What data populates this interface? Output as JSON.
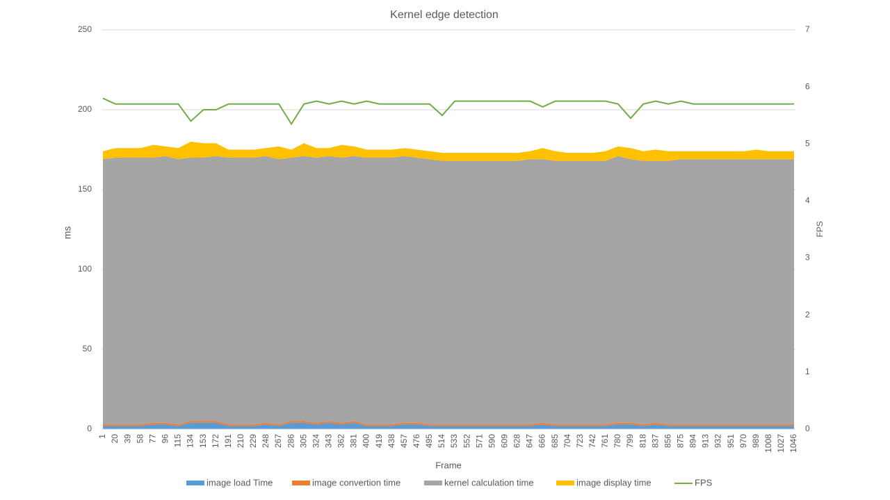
{
  "chart_data": {
    "type": "stacked-area-line",
    "title": "Kernel edge detection",
    "x_label": "Frame",
    "y_label": "ms",
    "y2_label": "FPS",
    "categories": [
      1,
      20,
      39,
      58,
      77,
      96,
      115,
      134,
      153,
      172,
      191,
      210,
      229,
      248,
      267,
      286,
      305,
      324,
      343,
      362,
      381,
      400,
      419,
      438,
      457,
      476,
      495,
      514,
      533,
      552,
      571,
      590,
      609,
      628,
      647,
      666,
      685,
      704,
      723,
      742,
      761,
      780,
      799,
      818,
      837,
      856,
      875,
      894,
      913,
      932,
      951,
      970,
      989,
      1008,
      1027,
      1046
    ],
    "ylim": [
      0,
      250
    ],
    "yticks": [
      0,
      50,
      100,
      150,
      200,
      250
    ],
    "y2lim": [
      0,
      7
    ],
    "y2ticks": [
      0,
      1,
      2,
      3,
      4,
      5,
      6,
      7
    ],
    "grid": true,
    "legend": "bottom",
    "series": [
      {
        "name": "image load Time",
        "color": "#5b9bd5",
        "kind": "area",
        "values": [
          2,
          2,
          2,
          2,
          3,
          3,
          2,
          4,
          4,
          4,
          2,
          2,
          2,
          3,
          2,
          4,
          4,
          3,
          4,
          3,
          4,
          2,
          2,
          2,
          3,
          3,
          2,
          2,
          2,
          2,
          2,
          2,
          2,
          2,
          2,
          3,
          2,
          2,
          2,
          2,
          2,
          3,
          3,
          2,
          3,
          2,
          2,
          2,
          2,
          2,
          2,
          2,
          2,
          2,
          2,
          2
        ]
      },
      {
        "name": "image convertion time",
        "color": "#ed7d31",
        "kind": "area",
        "values": [
          1,
          1,
          1,
          1,
          1,
          1,
          1,
          1,
          1,
          1,
          1,
          1,
          1,
          1,
          1,
          1,
          1,
          1,
          1,
          1,
          1,
          1,
          1,
          1,
          1,
          1,
          1,
          1,
          1,
          1,
          1,
          1,
          1,
          1,
          1,
          1,
          1,
          1,
          1,
          1,
          1,
          1,
          1,
          1,
          1,
          1,
          1,
          1,
          1,
          1,
          1,
          1,
          1,
          1,
          1,
          1
        ]
      },
      {
        "name": "kernel calculation time",
        "color": "#a5a5a5",
        "kind": "area",
        "values": [
          166,
          167,
          167,
          167,
          166,
          167,
          166,
          165,
          165,
          166,
          167,
          167,
          167,
          167,
          166,
          165,
          166,
          166,
          166,
          166,
          166,
          167,
          167,
          167,
          167,
          166,
          166,
          165,
          165,
          165,
          165,
          165,
          165,
          165,
          166,
          165,
          165,
          165,
          165,
          165,
          165,
          167,
          165,
          165,
          164,
          165,
          166,
          166,
          166,
          166,
          166,
          166,
          166,
          166,
          166,
          166
        ]
      },
      {
        "name": "image display time",
        "color": "#ffc000",
        "kind": "area",
        "values": [
          5,
          6,
          6,
          6,
          8,
          6,
          7,
          10,
          9,
          8,
          5,
          5,
          5,
          5,
          8,
          5,
          8,
          6,
          5,
          8,
          6,
          5,
          5,
          5,
          5,
          5,
          5,
          5,
          5,
          5,
          5,
          5,
          5,
          5,
          5,
          7,
          6,
          5,
          5,
          5,
          6,
          6,
          7,
          6,
          7,
          6,
          5,
          5,
          5,
          5,
          5,
          5,
          6,
          5,
          5,
          5
        ]
      },
      {
        "name": "FPS",
        "color": "#70ad47",
        "kind": "line",
        "axis": "y2",
        "values": [
          5.8,
          5.7,
          5.7,
          5.7,
          5.7,
          5.7,
          5.7,
          5.4,
          5.6,
          5.6,
          5.7,
          5.7,
          5.7,
          5.7,
          5.7,
          5.35,
          5.7,
          5.75,
          5.7,
          5.75,
          5.7,
          5.75,
          5.7,
          5.7,
          5.7,
          5.7,
          5.7,
          5.5,
          5.75,
          5.75,
          5.75,
          5.75,
          5.75,
          5.75,
          5.75,
          5.65,
          5.75,
          5.75,
          5.75,
          5.75,
          5.75,
          5.7,
          5.45,
          5.7,
          5.75,
          5.7,
          5.75,
          5.7,
          5.7,
          5.7,
          5.7,
          5.7,
          5.7,
          5.7,
          5.7,
          5.7
        ]
      }
    ]
  }
}
